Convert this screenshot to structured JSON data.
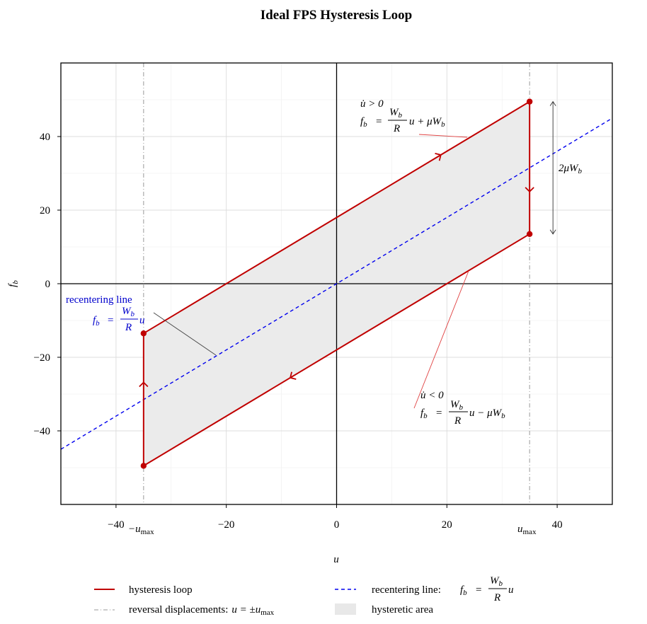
{
  "chart_data": {
    "type": "line",
    "title": "Ideal FPS Hysteresis Loop",
    "xlabel": "u",
    "ylabel": "f_b",
    "xlim": [
      -50,
      50
    ],
    "ylim": [
      -60,
      60
    ],
    "x_ticks": [
      -40,
      -20,
      0,
      20,
      40
    ],
    "y_ticks": [
      -40,
      -20,
      0,
      20,
      40
    ],
    "x_tick_labels": [
      "−40",
      "−20",
      "0",
      "20",
      "40"
    ],
    "y_tick_labels": [
      "−40",
      "−20",
      "0",
      "20",
      "40"
    ],
    "grid": true,
    "u_max": 35,
    "mu_Wb": 18,
    "Wb_over_R": 0.9,
    "series": [
      {
        "name": "hysteresis loop",
        "color": "#c00000",
        "style": "solid",
        "points": [
          [
            -35,
            -49.5
          ],
          [
            35,
            13.5
          ],
          [
            35,
            49.5
          ],
          [
            -35,
            -13.5
          ],
          [
            -35,
            -49.5
          ]
        ]
      },
      {
        "name": "recentering line: f_b = W_b/R u",
        "color": "#0000ee",
        "style": "dashed",
        "points": [
          [
            -50,
            -45
          ],
          [
            50,
            45
          ]
        ]
      }
    ],
    "vertices": [
      [
        35,
        49.5
      ],
      [
        35,
        13.5
      ],
      [
        -35,
        -13.5
      ],
      [
        -35,
        -49.5
      ]
    ],
    "annotations": {
      "upper_cond": "u̇ > 0",
      "upper_eq": "u + μW",
      "lower_cond": "u̇ < 0",
      "lower_eq": "u − μW",
      "recentering_title": "recentering line",
      "recentering_eq": "u",
      "two_mu": "2μW",
      "minus_umax": "−u",
      "umax": "u",
      "max_sub": "max",
      "fb_lhs": "f",
      "b_sub": "b",
      "eq_sign": "=",
      "Wb_num": "W",
      "R_den": "R"
    },
    "legend": {
      "placement": "bottom",
      "items": [
        {
          "label": "hysteresis loop",
          "color": "#c00000"
        },
        {
          "label": "recentering line:",
          "color": "#0000ee"
        },
        {
          "label": "reversal displacements:",
          "label_eq": "u = ±u",
          "color": "#888888"
        },
        {
          "label": "hysteretic area",
          "color": "#e8e8e8"
        }
      ]
    }
  }
}
